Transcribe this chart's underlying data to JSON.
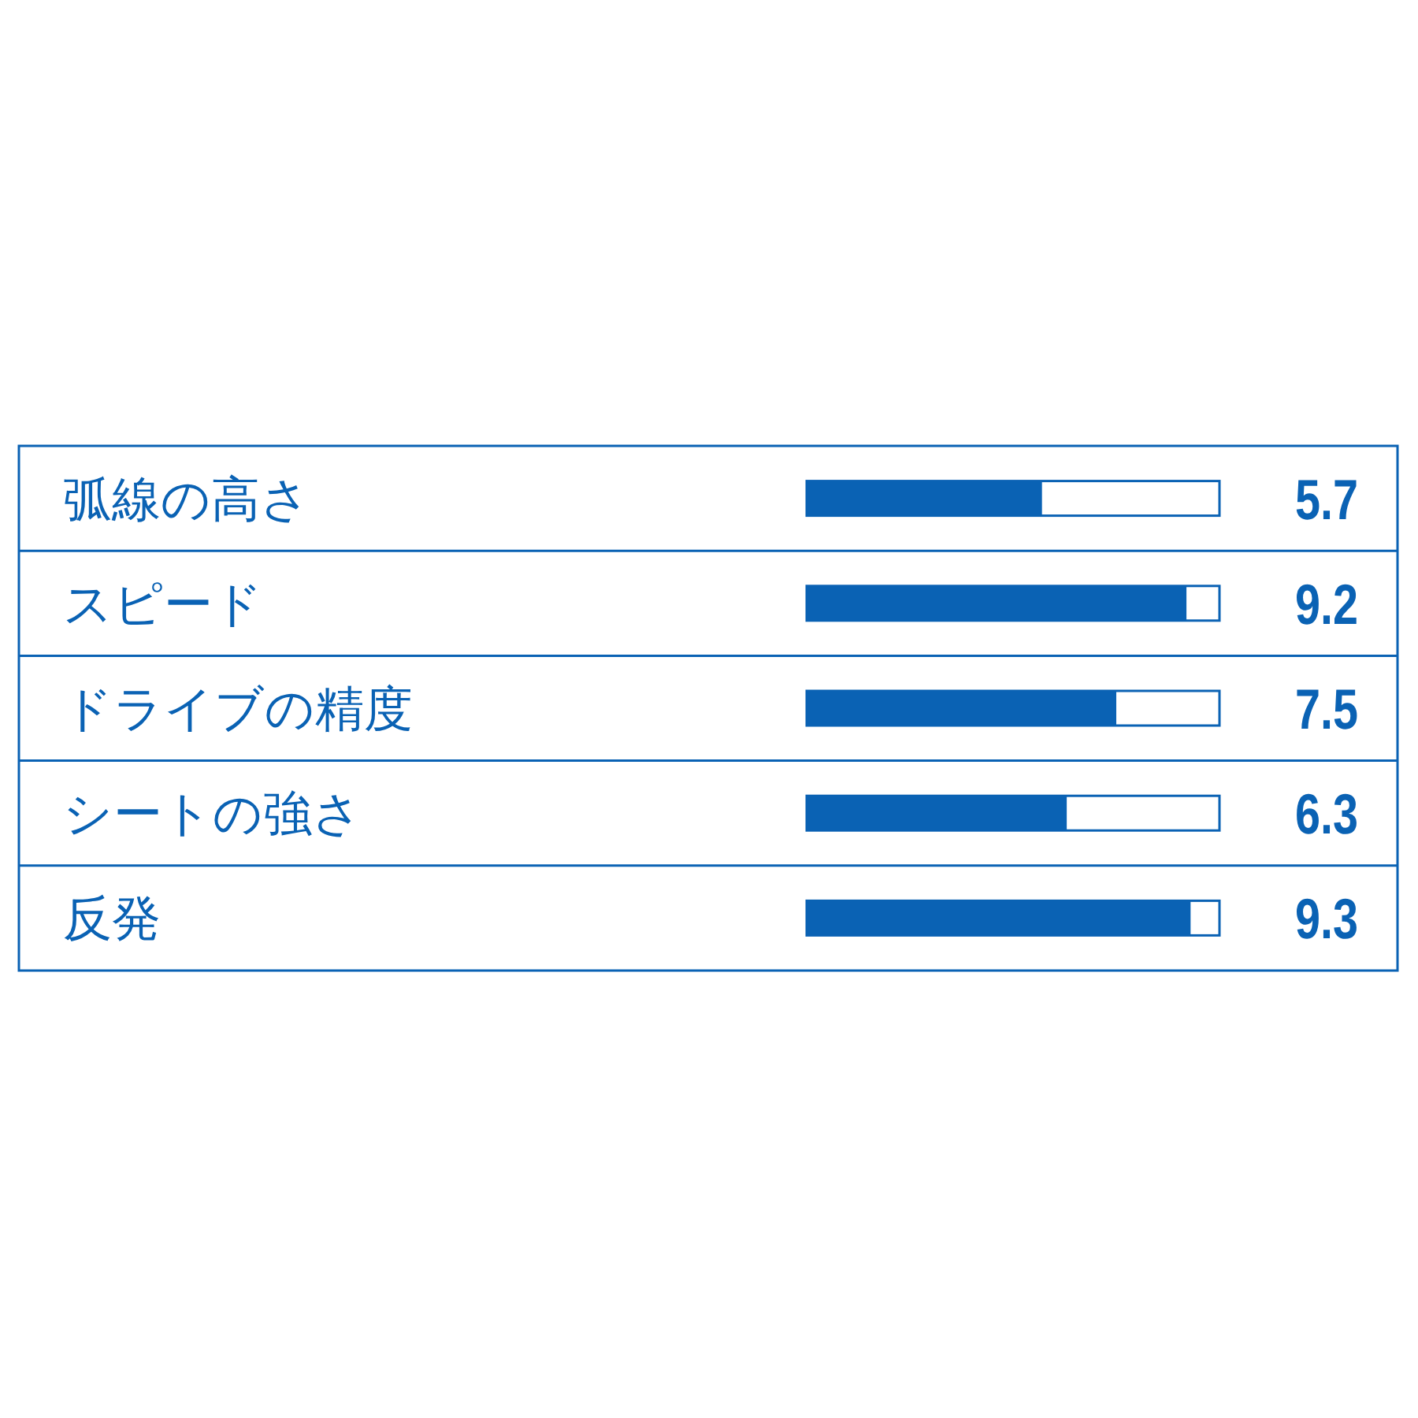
{
  "chart_data": {
    "type": "bar",
    "orientation": "horizontal",
    "categories": [
      "弧線の高さ",
      "スピード",
      "ドライブの精度",
      "シートの強さ",
      "反発"
    ],
    "values": [
      5.7,
      9.2,
      7.5,
      6.3,
      9.3
    ],
    "color": "#0a62b4",
    "xlim": [
      0,
      10
    ],
    "data_labels": true
  }
}
